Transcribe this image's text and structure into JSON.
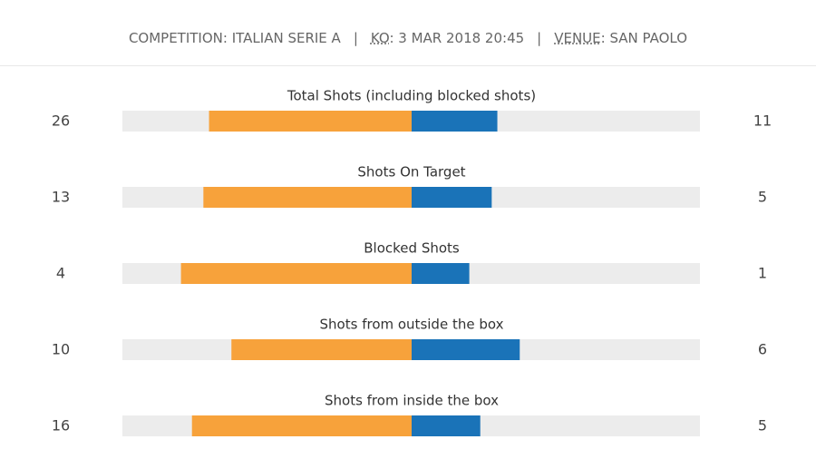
{
  "header": {
    "items": [
      {
        "label": "COMPETITION",
        "sep": ":",
        "value": "ITALIAN SERIE A",
        "abbr": false
      },
      {
        "label": "KO",
        "sep": ":",
        "value": "3 MAR 2018 20:45",
        "abbr": true
      },
      {
        "label": "VENUE",
        "sep": ":",
        "value": "SAN PAOLO",
        "abbr": true
      }
    ],
    "divider": "|"
  },
  "stats": {
    "home_color": "#f7a23b",
    "away_color": "#1a73b8",
    "rows": [
      {
        "label": "Total Shots (including blocked shots)",
        "home": 26,
        "away": 11
      },
      {
        "label": "Shots On Target",
        "home": 13,
        "away": 5
      },
      {
        "label": "Blocked Shots",
        "home": 4,
        "away": 1
      },
      {
        "label": "Shots from outside the box",
        "home": 10,
        "away": 6
      },
      {
        "label": "Shots from inside the box",
        "home": 16,
        "away": 5
      }
    ]
  }
}
